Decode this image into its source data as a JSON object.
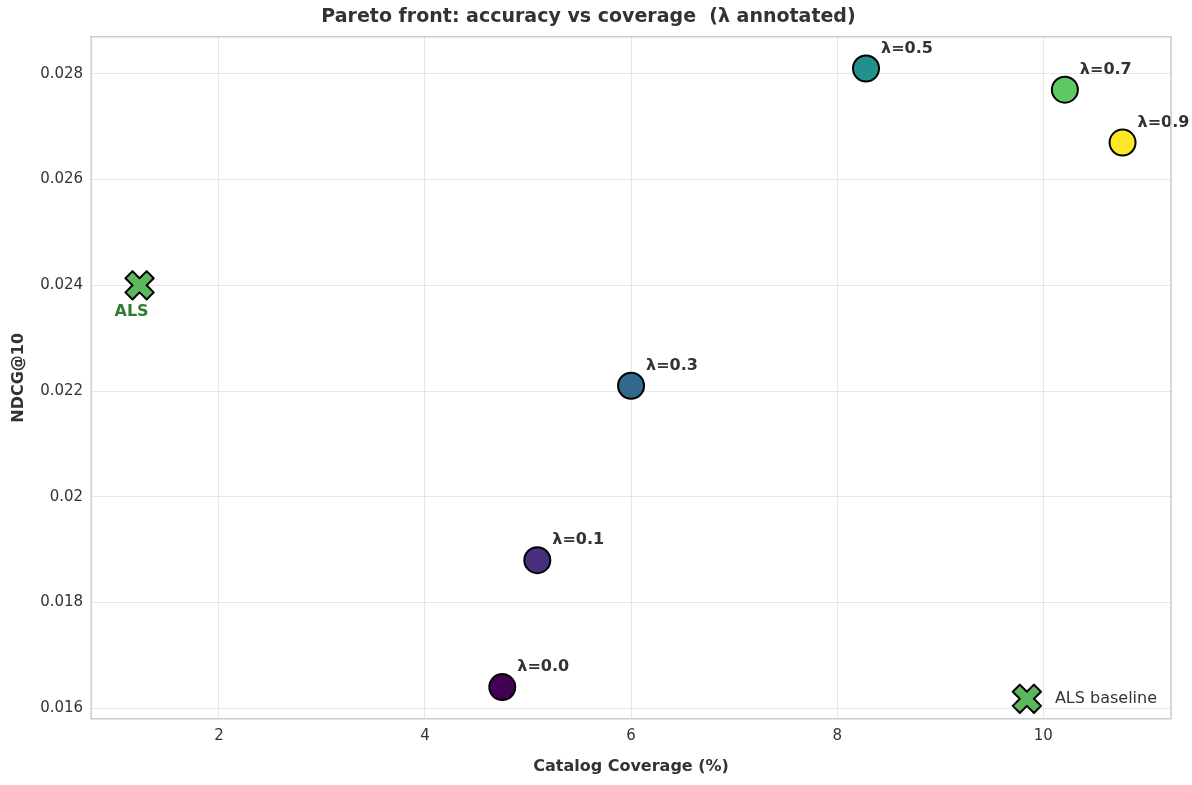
{
  "chart_data": {
    "type": "scatter",
    "title": "Pareto front: accuracy vs coverage  (λ annotated)",
    "xlabel": "Catalog Coverage (%)",
    "ylabel": "NDCG@10",
    "xlim": [
      0.76,
      11.24
    ],
    "xticks": [
      2,
      4,
      6,
      8,
      10
    ],
    "ylim": [
      0.0158,
      0.0287
    ],
    "yticks": [
      0.016,
      0.018,
      0.02,
      0.022,
      0.024,
      0.026,
      0.028
    ],
    "series": [
      {
        "x": [
          4.75,
          5.09,
          6.0,
          8.28,
          10.21,
          10.77
        ],
        "values": [
          0.0164,
          0.0188,
          0.0221,
          0.0281,
          0.0277,
          0.0267
        ],
        "colors": [
          "#440154",
          "#472f7d",
          "#31688e",
          "#21918c",
          "#5ec962",
          "#fde725"
        ],
        "marker": "circle"
      },
      {
        "name": "ALS baseline",
        "x": [
          1.23
        ],
        "values": [
          0.024
        ],
        "color": "#5cb85c",
        "marker": "cross"
      }
    ],
    "annotations": [
      {
        "text": "λ=0.0",
        "x": 4.75,
        "y": 0.0164
      },
      {
        "text": "λ=0.1",
        "x": 5.09,
        "y": 0.0188
      },
      {
        "text": "λ=0.3",
        "x": 6.0,
        "y": 0.0221
      },
      {
        "text": "λ=0.5",
        "x": 8.28,
        "y": 0.0281
      },
      {
        "text": "λ=0.7",
        "x": 10.21,
        "y": 0.0277
      },
      {
        "text": "λ=0.9",
        "x": 10.77,
        "y": 0.0267
      },
      {
        "text": "ALS",
        "x": 1.23,
        "y": 0.024
      }
    ],
    "grid": true,
    "legend": "bottom right"
  }
}
